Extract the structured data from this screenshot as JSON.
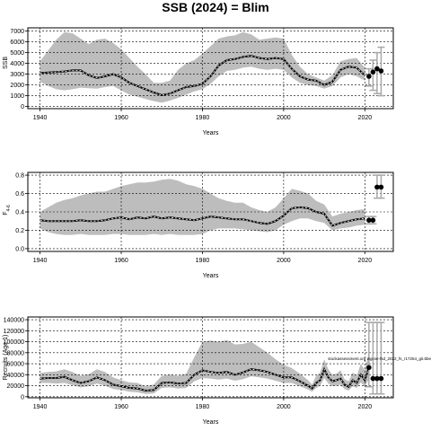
{
  "title": "SSB (2024) = Blim",
  "annotation": "stockassessment.org wgcse-fsd_2022_fs_r17254_git.5be",
  "chart_data": [
    {
      "type": "area",
      "name": "panel-ssb",
      "xlabel": "Years",
      "ylabel": "SSB",
      "xlim": [
        1937,
        2027
      ],
      "ylim": [
        -200,
        7300
      ],
      "xticks": [
        1940,
        1960,
        1980,
        2000,
        2020
      ],
      "yticks": [
        0,
        1000,
        2000,
        3000,
        4000,
        5000,
        6000,
        7000
      ],
      "grid": true,
      "x": [
        1940,
        1942,
        1944,
        1946,
        1948,
        1950,
        1952,
        1954,
        1956,
        1958,
        1960,
        1962,
        1964,
        1966,
        1968,
        1970,
        1972,
        1974,
        1976,
        1978,
        1980,
        1982,
        1984,
        1986,
        1988,
        1990,
        1992,
        1994,
        1996,
        1998,
        2000,
        2002,
        2004,
        2006,
        2008,
        2010,
        2012,
        2014,
        2016,
        2018,
        2020
      ],
      "estimate": [
        3100,
        3150,
        3200,
        3250,
        3350,
        3350,
        2900,
        2650,
        2800,
        3000,
        2700,
        2200,
        1900,
        1600,
        1300,
        1050,
        1200,
        1500,
        1800,
        1900,
        2100,
        2800,
        3800,
        4300,
        4400,
        4600,
        4700,
        4500,
        4400,
        4500,
        4400,
        3500,
        2800,
        2500,
        2400,
        2000,
        2300,
        3400,
        3700,
        3600,
        2900
      ],
      "lower": [
        2300,
        1900,
        1600,
        1500,
        1600,
        1750,
        1700,
        1650,
        1800,
        1900,
        1500,
        1100,
        900,
        700,
        500,
        350,
        550,
        800,
        1100,
        1400,
        1600,
        2100,
        2800,
        3300,
        3400,
        3600,
        3700,
        3500,
        3400,
        3500,
        3400,
        2700,
        2200,
        2000,
        1900,
        1650,
        1900,
        2700,
        3000,
        2800,
        2400
      ],
      "upper": [
        4200,
        5200,
        6200,
        6900,
        6800,
        6300,
        5800,
        6200,
        6300,
        5900,
        5300,
        4500,
        3700,
        3000,
        2200,
        2200,
        2400,
        3400,
        4000,
        4300,
        4900,
        5600,
        6300,
        6500,
        6600,
        6900,
        6700,
        6200,
        6300,
        6400,
        6300,
        4800,
        3700,
        3000,
        2700,
        2400,
        2900,
        4200,
        4400,
        4500,
        3600
      ],
      "forecast_x": [
        2021,
        2022,
        2023,
        2024
      ],
      "forecast_y": [
        2800,
        3200,
        3500,
        3300
      ],
      "forecast_low": [
        1900,
        1500,
        1200,
        1000
      ],
      "forecast_high": [
        3500,
        4300,
        5000,
        5500
      ]
    },
    {
      "type": "area",
      "name": "panel-f",
      "xlabel": "Years",
      "ylabel": "F",
      "ylabel_sub": "4-6",
      "xlim": [
        1937,
        2027
      ],
      "ylim": [
        -0.03,
        0.83
      ],
      "xticks": [
        1940,
        1960,
        1980,
        2000,
        2020
      ],
      "yticks": [
        0,
        0.2,
        0.4,
        0.6,
        0.8
      ],
      "ytick_labels": [
        "0.0",
        "0.2",
        "0.4",
        "0.6",
        "0.8"
      ],
      "grid": true,
      "x": [
        1940,
        1942,
        1944,
        1946,
        1948,
        1950,
        1952,
        1954,
        1956,
        1958,
        1960,
        1962,
        1964,
        1966,
        1968,
        1970,
        1972,
        1974,
        1976,
        1978,
        1980,
        1982,
        1984,
        1986,
        1988,
        1990,
        1992,
        1994,
        1996,
        1998,
        2000,
        2002,
        2004,
        2006,
        2008,
        2010,
        2012,
        2014,
        2016,
        2018,
        2020
      ],
      "estimate": [
        0.31,
        0.3,
        0.3,
        0.3,
        0.3,
        0.31,
        0.3,
        0.3,
        0.31,
        0.33,
        0.34,
        0.32,
        0.34,
        0.33,
        0.35,
        0.33,
        0.34,
        0.33,
        0.32,
        0.31,
        0.33,
        0.35,
        0.34,
        0.33,
        0.32,
        0.32,
        0.3,
        0.28,
        0.27,
        0.3,
        0.36,
        0.44,
        0.45,
        0.44,
        0.4,
        0.38,
        0.25,
        0.28,
        0.3,
        0.32,
        0.33
      ],
      "lower": [
        0.22,
        0.18,
        0.16,
        0.15,
        0.15,
        0.16,
        0.15,
        0.15,
        0.15,
        0.16,
        0.16,
        0.15,
        0.15,
        0.15,
        0.16,
        0.15,
        0.16,
        0.15,
        0.15,
        0.15,
        0.16,
        0.2,
        0.22,
        0.22,
        0.22,
        0.21,
        0.2,
        0.19,
        0.18,
        0.2,
        0.26,
        0.3,
        0.33,
        0.33,
        0.3,
        0.28,
        0.2,
        0.22,
        0.23,
        0.25,
        0.26
      ],
      "upper": [
        0.4,
        0.45,
        0.5,
        0.53,
        0.55,
        0.58,
        0.6,
        0.62,
        0.62,
        0.65,
        0.68,
        0.7,
        0.72,
        0.72,
        0.73,
        0.75,
        0.76,
        0.74,
        0.7,
        0.68,
        0.65,
        0.6,
        0.55,
        0.52,
        0.5,
        0.5,
        0.45,
        0.42,
        0.4,
        0.45,
        0.55,
        0.65,
        0.63,
        0.6,
        0.52,
        0.48,
        0.35,
        0.38,
        0.4,
        0.42,
        0.43
      ],
      "forecast_x": [
        2021,
        2022,
        2023,
        2024
      ],
      "forecast_y": [
        0.31,
        0.31,
        0.67,
        0.67
      ],
      "forecast_low": [
        0.27,
        0.27,
        0.55,
        0.55
      ],
      "forecast_high": [
        0.35,
        0.35,
        0.8,
        0.8
      ]
    },
    {
      "type": "area",
      "name": "panel-recruitment",
      "xlabel": "Years",
      "ylabel": "Recruits (Age 1)",
      "xlim": [
        1937,
        2027
      ],
      "ylim": [
        -2000,
        145000
      ],
      "xticks": [
        1940,
        1960,
        1980,
        2000,
        2020
      ],
      "yticks": [
        0,
        20000,
        40000,
        60000,
        80000,
        100000,
        120000,
        140000
      ],
      "grid": true,
      "x": [
        1940,
        1942,
        1944,
        1946,
        1948,
        1950,
        1952,
        1954,
        1956,
        1958,
        1960,
        1962,
        1964,
        1966,
        1968,
        1970,
        1972,
        1974,
        1976,
        1978,
        1980,
        1982,
        1984,
        1986,
        1988,
        1990,
        1992,
        1994,
        1996,
        1998,
        2000,
        2002,
        2004,
        2006,
        2007,
        2008,
        2009,
        2010,
        2011,
        2012,
        2013,
        2014,
        2015,
        2016,
        2017,
        2018,
        2019,
        2020,
        2021
      ],
      "estimate": [
        33000,
        34000,
        34000,
        36000,
        30000,
        25000,
        28000,
        35000,
        30000,
        22000,
        19000,
        16000,
        15000,
        11000,
        12000,
        25000,
        26000,
        24000,
        25000,
        40000,
        48000,
        45000,
        43000,
        45000,
        40000,
        44000,
        50000,
        48000,
        45000,
        40000,
        35000,
        35000,
        28000,
        20000,
        15000,
        25000,
        30000,
        50000,
        35000,
        28000,
        30000,
        33000,
        22000,
        18000,
        30000,
        25000,
        40000,
        30000,
        53000
      ],
      "lower": [
        25000,
        25000,
        24000,
        25000,
        21000,
        17000,
        19000,
        24000,
        20000,
        14000,
        12000,
        9000,
        8000,
        5000,
        6000,
        16000,
        17000,
        15000,
        16000,
        28000,
        34000,
        33000,
        31000,
        33000,
        29000,
        32000,
        37000,
        35000,
        33000,
        29000,
        25000,
        25000,
        19000,
        13000,
        9000,
        16000,
        20000,
        34000,
        24000,
        19000,
        20000,
        22000,
        14000,
        11000,
        19000,
        16000,
        26000,
        18000,
        32000
      ],
      "upper": [
        43000,
        45000,
        46000,
        50000,
        45000,
        38000,
        41000,
        50000,
        45000,
        35000,
        30000,
        26000,
        25000,
        19000,
        22000,
        38000,
        40000,
        38000,
        42000,
        72000,
        100000,
        102000,
        100000,
        103000,
        95000,
        96000,
        100000,
        90000,
        80000,
        68000,
        58000,
        52000,
        42000,
        30000,
        22000,
        38000,
        44000,
        68000,
        50000,
        40000,
        42000,
        48000,
        32000,
        28000,
        44000,
        38000,
        60000,
        48000,
        82000
      ],
      "forecast_x": [
        2021,
        2022,
        2023,
        2024
      ],
      "forecast_y": [
        53000,
        33000,
        33000,
        33000
      ],
      "forecast_low": [
        18000,
        5000,
        5000,
        5000
      ],
      "forecast_high": [
        135000,
        135000,
        135000,
        135000
      ]
    }
  ],
  "colors": {
    "band": "#bdbdbd",
    "line": "#000000",
    "grid": "#000000",
    "forecast_bar": "#a8a8a8"
  }
}
